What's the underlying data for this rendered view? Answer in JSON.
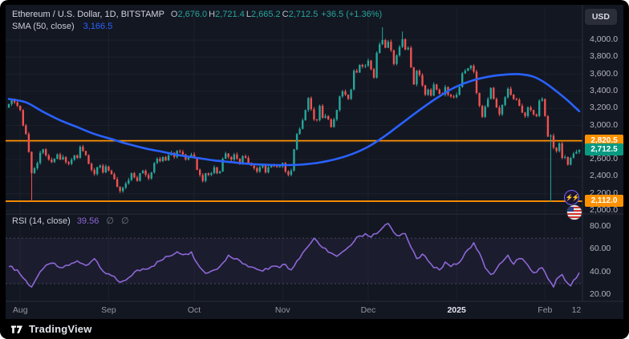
{
  "colors": {
    "bg": "#131722",
    "frame": "#000000",
    "up": "#26a69a",
    "down": "#ef5350",
    "sma": "#2962ff",
    "rsi": "#8d67d6",
    "orange": "#ff9100",
    "last_badge": "#089981",
    "axis_text": "#b2b5be",
    "text": "#d1d4dc",
    "muted": "#787b86",
    "grid": "rgba(134,142,160,0.08)",
    "sep": "#2a2e39"
  },
  "header": {
    "symbol": "Ethereum / U.S. Dollar, 1D, BITSTAMP",
    "quote_items": [
      {
        "k": "O",
        "v": "2,676.0"
      },
      {
        "k": "H",
        "v": "2,721.4"
      },
      {
        "k": "L",
        "v": "2,665.2"
      },
      {
        "k": "C",
        "v": "2,712.5"
      }
    ],
    "change": "+36.5 (+1.36%)",
    "sma_label": "SMA (50, close)",
    "sma_value": "3,166.5"
  },
  "currency_button": "USD",
  "rsi_legend": {
    "title": "RSI (14, close)",
    "value": "39.56",
    "extra": "∅ ∅"
  },
  "price_axis": {
    "ticks": [
      {
        "v": 4000,
        "label": "4,000.0"
      },
      {
        "v": 3800,
        "label": "3,800.0"
      },
      {
        "v": 3600,
        "label": "3,600.0"
      },
      {
        "v": 3400,
        "label": "3,400.0"
      },
      {
        "v": 3200,
        "label": "3,200.0"
      },
      {
        "v": 3000,
        "label": "3,000.0"
      },
      {
        "v": 2600,
        "label": "2,600.0"
      },
      {
        "v": 2400,
        "label": "2,400.0"
      },
      {
        "v": 2200,
        "label": "2,200.0"
      },
      {
        "v": 2000,
        "label": "2,000.0"
      }
    ],
    "badges": [
      {
        "v": 2820.5,
        "label": "2,820.5",
        "type": "line"
      },
      {
        "v": 2712.5,
        "label": "2,712.5",
        "type": "last"
      },
      {
        "v": 2112.0,
        "label": "2,112.0",
        "type": "line"
      }
    ]
  },
  "rsi_axis": [
    {
      "v": 80,
      "label": "80.00"
    },
    {
      "v": 60,
      "label": "60.00"
    },
    {
      "v": 40,
      "label": "40.00"
    },
    {
      "v": 20,
      "label": "20.00"
    }
  ],
  "time_axis": [
    {
      "d": 4,
      "label": "Aug"
    },
    {
      "d": 35,
      "label": "Sep"
    },
    {
      "d": 65,
      "label": "Oct"
    },
    {
      "d": 96,
      "label": "Nov"
    },
    {
      "d": 126,
      "label": "Dec"
    },
    {
      "d": 157,
      "label": "2025",
      "strong": true
    },
    {
      "d": 188,
      "label": "Feb"
    },
    {
      "d": 199,
      "label": "12"
    }
  ],
  "footer": {
    "brand": "TradingView"
  },
  "chart_data": {
    "type": "candlestick",
    "title": "Ethereum / U.S. Dollar, 1D, BITSTAMP",
    "legend_position": "top-left",
    "grid": true,
    "x_domain_days": [
      0,
      200
    ],
    "month_grid_days": [
      4,
      35,
      65,
      96,
      126,
      157,
      188
    ],
    "price_ylim": [
      2000,
      4000
    ],
    "price_grid_step": 200,
    "last_price": 2712.5,
    "price_lines": [
      2820.5,
      2112.0
    ],
    "candles": {
      "first_open": 3210,
      "closes": [
        3250,
        3300,
        3270,
        3230,
        3180,
        3000,
        2900,
        2690,
        2440,
        2500,
        2560,
        2680,
        2720,
        2650,
        2600,
        2570,
        2610,
        2660,
        2600,
        2630,
        2570,
        2550,
        2600,
        2650,
        2620,
        2750,
        2700,
        2650,
        2550,
        2480,
        2430,
        2510,
        2530,
        2450,
        2520,
        2470,
        2430,
        2370,
        2280,
        2230,
        2270,
        2320,
        2360,
        2440,
        2390,
        2350,
        2440,
        2470,
        2420,
        2380,
        2450,
        2560,
        2610,
        2580,
        2630,
        2590,
        2650,
        2680,
        2630,
        2700,
        2690,
        2660,
        2600,
        2630,
        2660,
        2620,
        2480,
        2420,
        2350,
        2440,
        2420,
        2440,
        2510,
        2440,
        2460,
        2610,
        2670,
        2630,
        2600,
        2660,
        2610,
        2550,
        2640,
        2620,
        2560,
        2530,
        2500,
        2460,
        2510,
        2530,
        2450,
        2510,
        2540,
        2520,
        2510,
        2520,
        2560,
        2460,
        2420,
        2470,
        2720,
        2900,
        2960,
        3060,
        3180,
        3320,
        3190,
        3070,
        3060,
        3230,
        3090,
        3110,
        3070,
        2980,
        3070,
        3180,
        3340,
        3400,
        3360,
        3310,
        3420,
        3640,
        3620,
        3710,
        3690,
        3700,
        3760,
        3660,
        3560,
        3850,
        3950,
        4000,
        3910,
        3980,
        3880,
        3720,
        3820,
        3920,
        4010,
        3890,
        3910,
        3680,
        3480,
        3640,
        3590,
        3470,
        3360,
        3420,
        3350,
        3480,
        3420,
        3370,
        3360,
        3450,
        3360,
        3340,
        3330,
        3360,
        3450,
        3610,
        3640,
        3670,
        3700,
        3630,
        3380,
        3230,
        3100,
        3220,
        3310,
        3440,
        3310,
        3210,
        3130,
        3240,
        3330,
        3430,
        3360,
        3310,
        3300,
        3230,
        3150,
        3110,
        3210,
        3180,
        3130,
        3110,
        3290,
        3310,
        3110,
        2870,
        2880,
        2740,
        2700,
        2790,
        2620,
        2630,
        2540,
        2620,
        2670,
        2690,
        2712.5
      ],
      "wick_high_overrides": {
        "131": 4150,
        "138": 4100
      },
      "wick_low_overrides": {
        "8": 2111,
        "190": 2105
      }
    },
    "sma50": {
      "period": 50,
      "last_value": 3166.5,
      "points": [
        [
          0,
          3310
        ],
        [
          6,
          3270
        ],
        [
          12,
          3160
        ],
        [
          18,
          3060
        ],
        [
          24,
          2980
        ],
        [
          30,
          2900
        ],
        [
          36,
          2840
        ],
        [
          42,
          2780
        ],
        [
          48,
          2730
        ],
        [
          54,
          2690
        ],
        [
          60,
          2650
        ],
        [
          66,
          2620
        ],
        [
          72,
          2590
        ],
        [
          78,
          2570
        ],
        [
          84,
          2550
        ],
        [
          90,
          2540
        ],
        [
          96,
          2535
        ],
        [
          102,
          2540
        ],
        [
          108,
          2560
        ],
        [
          114,
          2600
        ],
        [
          120,
          2660
        ],
        [
          126,
          2750
        ],
        [
          132,
          2880
        ],
        [
          138,
          3030
        ],
        [
          144,
          3180
        ],
        [
          150,
          3320
        ],
        [
          156,
          3440
        ],
        [
          162,
          3520
        ],
        [
          168,
          3570
        ],
        [
          174,
          3595
        ],
        [
          179,
          3600
        ],
        [
          184,
          3570
        ],
        [
          188,
          3500
        ],
        [
          192,
          3400
        ],
        [
          196,
          3290
        ],
        [
          200,
          3166.5
        ]
      ]
    },
    "rsi": {
      "period": 14,
      "last_value": 39.56,
      "bands": [
        70,
        30
      ],
      "ylim": [
        0,
        100
      ],
      "points": [
        [
          0,
          45
        ],
        [
          3,
          42
        ],
        [
          5,
          35
        ],
        [
          8,
          27
        ],
        [
          10,
          36
        ],
        [
          12,
          43
        ],
        [
          15,
          48
        ],
        [
          18,
          44
        ],
        [
          21,
          46
        ],
        [
          24,
          50
        ],
        [
          27,
          46
        ],
        [
          30,
          52
        ],
        [
          33,
          41
        ],
        [
          36,
          37
        ],
        [
          39,
          31
        ],
        [
          41,
          33
        ],
        [
          44,
          40
        ],
        [
          47,
          43
        ],
        [
          50,
          45
        ],
        [
          53,
          50
        ],
        [
          56,
          54
        ],
        [
          59,
          58
        ],
        [
          62,
          56
        ],
        [
          64,
          58
        ],
        [
          66,
          48
        ],
        [
          69,
          39
        ],
        [
          72,
          42
        ],
        [
          75,
          48
        ],
        [
          77,
          55
        ],
        [
          80,
          52
        ],
        [
          83,
          47
        ],
        [
          86,
          44
        ],
        [
          89,
          41
        ],
        [
          92,
          45
        ],
        [
          95,
          44
        ],
        [
          97,
          47
        ],
        [
          99,
          42
        ],
        [
          101,
          50
        ],
        [
          103,
          57
        ],
        [
          105,
          63
        ],
        [
          107,
          70
        ],
        [
          109,
          64
        ],
        [
          111,
          61
        ],
        [
          113,
          57
        ],
        [
          115,
          54
        ],
        [
          117,
          58
        ],
        [
          119,
          62
        ],
        [
          121,
          67
        ],
        [
          123,
          72
        ],
        [
          125,
          74
        ],
        [
          127,
          71
        ],
        [
          129,
          74
        ],
        [
          131,
          79
        ],
        [
          133,
          83
        ],
        [
          135,
          75
        ],
        [
          137,
          72
        ],
        [
          139,
          74
        ],
        [
          141,
          62
        ],
        [
          143,
          52
        ],
        [
          145,
          56
        ],
        [
          147,
          50
        ],
        [
          149,
          44
        ],
        [
          151,
          42
        ],
        [
          153,
          49
        ],
        [
          155,
          45
        ],
        [
          157,
          47
        ],
        [
          159,
          52
        ],
        [
          161,
          60
        ],
        [
          163,
          66
        ],
        [
          165,
          57
        ],
        [
          167,
          44
        ],
        [
          169,
          38
        ],
        [
          171,
          43
        ],
        [
          173,
          49
        ],
        [
          175,
          55
        ],
        [
          177,
          47
        ],
        [
          179,
          52
        ],
        [
          181,
          49
        ],
        [
          183,
          42
        ],
        [
          185,
          40
        ],
        [
          187,
          44
        ],
        [
          188,
          40
        ],
        [
          190,
          31
        ],
        [
          191,
          27
        ],
        [
          192,
          34
        ],
        [
          193,
          36
        ],
        [
          194,
          38
        ],
        [
          195,
          33
        ],
        [
          196,
          30
        ],
        [
          197,
          28
        ],
        [
          198,
          33
        ],
        [
          199,
          35
        ],
        [
          200,
          39.56
        ]
      ]
    }
  }
}
